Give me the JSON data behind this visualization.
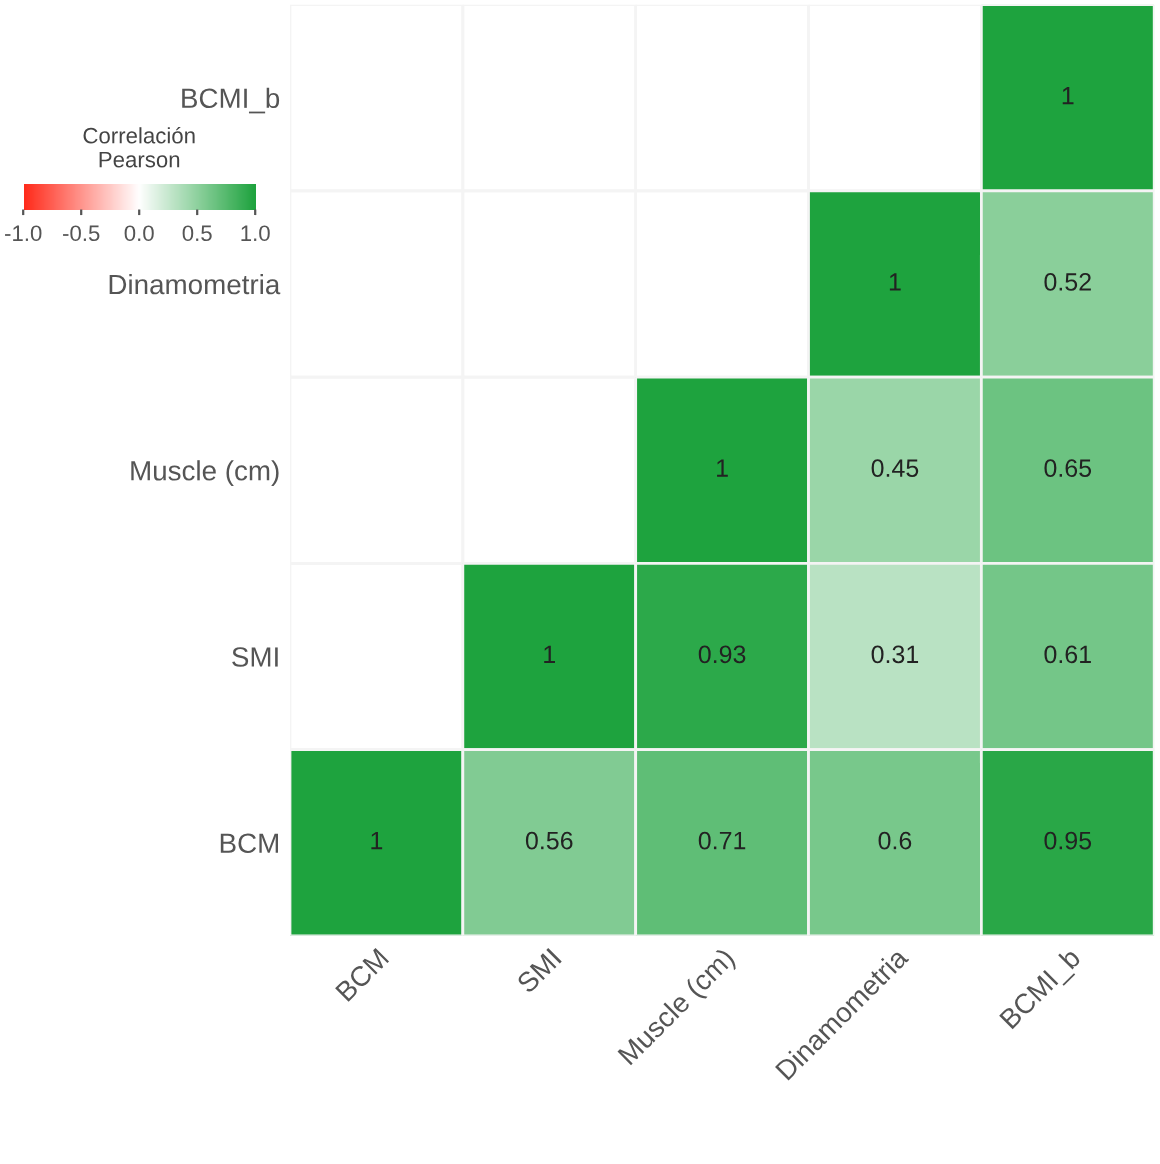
{
  "chart_data": {
    "type": "heatmap",
    "clabel": "Correlación\nPearson",
    "categories": [
      "BCM",
      "SMI",
      "Muscle (cm)",
      "Dinamometria",
      "BCMI_b"
    ],
    "y_categories": [
      "BCMI_b",
      "Dinamometria",
      "Muscle (cm)",
      "SMI",
      "BCM"
    ],
    "cells": [
      [
        null,
        null,
        null,
        null,
        1
      ],
      [
        null,
        null,
        null,
        1,
        0.52
      ],
      [
        null,
        null,
        1,
        0.45,
        0.65
      ],
      [
        null,
        1,
        0.93,
        0.31,
        0.61
      ],
      [
        1,
        0.56,
        0.71,
        0.6,
        0.95
      ]
    ],
    "data_labels": true,
    "clim": [
      -1.0,
      1.0
    ],
    "cticks": [
      {
        "value": -1.0,
        "label": "-1.0"
      },
      {
        "value": -0.5,
        "label": "-0.5"
      },
      {
        "value": 0.0,
        "label": "0.0"
      },
      {
        "value": 0.5,
        "label": "0.5"
      },
      {
        "value": 1.0,
        "label": "1.0"
      }
    ]
  }
}
